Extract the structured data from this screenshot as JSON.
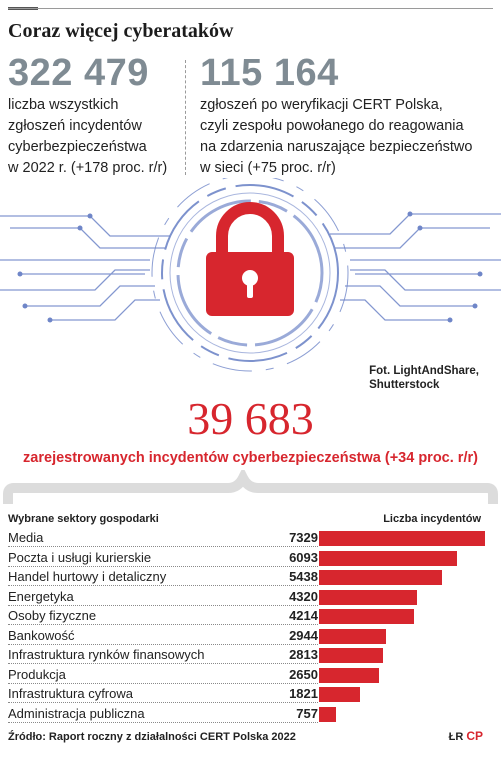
{
  "title": "Coraz więcej cyberataków",
  "stats": [
    {
      "value": "322 479",
      "text": "liczba wszystkich\nzgłoszeń incydentów\ncyberbezpieczeństwa\nw 2022 r. (+178 proc. r/r)"
    },
    {
      "value": "115 164",
      "text": "zgłoszeń po weryfikacji CERT Polska,\nczyli zespołu powołanego do reagowania\nna zdarzenia naruszające bezpieczeństwo\nw sieci (+75 proc. r/r)"
    }
  ],
  "photo_credit": "Fot. LightAndShare,\nShutterstock",
  "incidents": {
    "value": "39 683",
    "text": "zarejestrowanych incydentów cyberbezpieczeństwa (+34 proc. r/r)"
  },
  "chart_data": {
    "type": "bar",
    "orientation": "horizontal",
    "category_header": "Wybrane sektory gospodarki",
    "value_header": "Liczba incydentów",
    "categories": [
      "Media",
      "Poczta i usługi kurierskie",
      "Handel hurtowy i detaliczny",
      "Energetyka",
      "Osoby fizyczne",
      "Bankowość",
      "Infrastruktura rynków finansowych",
      "Produkcja",
      "Infrastruktura cyfrowa",
      "Administracja publiczna"
    ],
    "values": [
      7329,
      6093,
      5438,
      4320,
      4214,
      2944,
      2813,
      2650,
      1821,
      757
    ],
    "value_labels": [
      "7329",
      "6093",
      "5438",
      "4320",
      "4214",
      "2944",
      "2813",
      "2650",
      "1821",
      "757"
    ],
    "xlim": [
      0,
      7329
    ],
    "bar_color": "#d7262e"
  },
  "source": "Źródło: Raport roczny z działalności CERT Polska 2022",
  "logo": {
    "initials": "ŁR",
    "mark": "CP"
  },
  "colors": {
    "accent": "#d7262e",
    "stat_gray": "#7f8b93",
    "circuit_blue": "#6f86c8"
  }
}
